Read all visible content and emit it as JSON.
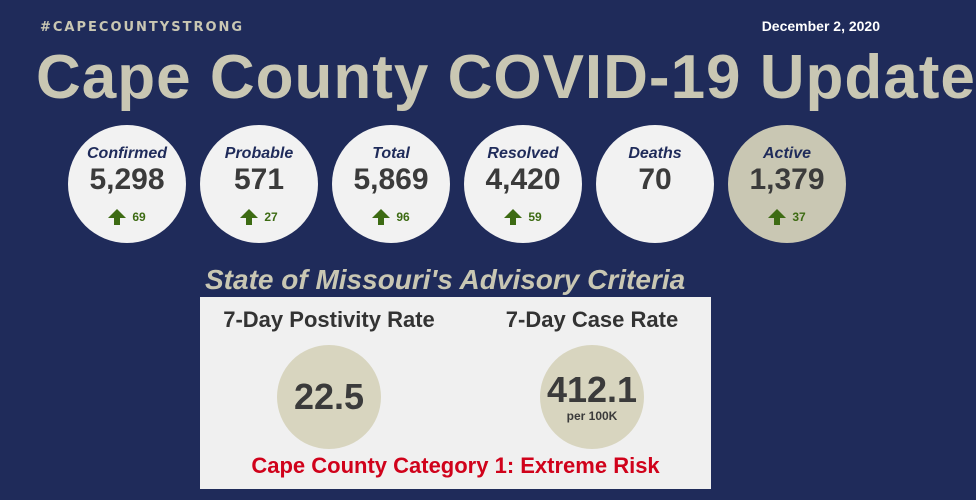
{
  "header": {
    "hashtag": "#CAPECOUNTYSTRONG",
    "date": "December 2, 2020",
    "title": "Cape County COVID-19 Update"
  },
  "stats": [
    {
      "label": "Confirmed",
      "value": "5,298",
      "delta": "69"
    },
    {
      "label": "Probable",
      "value": "571",
      "delta": "27"
    },
    {
      "label": "Total",
      "value": "5,869",
      "delta": "96"
    },
    {
      "label": "Resolved",
      "value": "4,420",
      "delta": "59"
    },
    {
      "label": "Deaths",
      "value": "70",
      "delta": ""
    },
    {
      "label": "Active",
      "value": "1,379",
      "delta": "37"
    }
  ],
  "advisory": {
    "title": "State of Missouri's Advisory Criteria",
    "positivity_label": "7-Day Postivity Rate",
    "positivity_value": "22.5",
    "case_rate_label": "7-Day Case Rate",
    "case_rate_value": "412.1",
    "case_rate_unit": "per 100K",
    "risk_text": "Cape County Category 1: Extreme Risk"
  },
  "colors": {
    "background": "#1f2b5a",
    "accent": "#c9c7b3",
    "up_arrow": "#3d6b13",
    "risk": "#d0021b"
  },
  "icons": {
    "delta_icon": "up-arrow-icon"
  }
}
